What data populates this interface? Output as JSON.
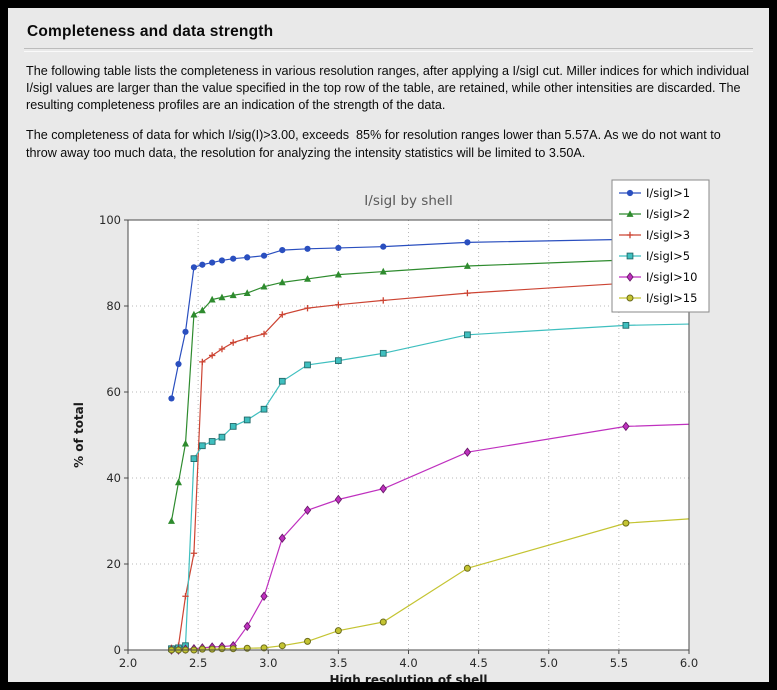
{
  "page": {
    "title": "Completeness and data strength",
    "paragraph1": "The following table lists the completeness in various resolution ranges, after applying a I/sigI cut. Miller indices for which individual I/sigI values are larger than the value specified in the top row of the table, are retained, while other intensities are discarded. The resulting completeness profiles are an indication of the strength of the data.",
    "paragraph2": "The completeness of data for which I/sig(I)>3.00, exceeds  85% for resolution ranges lower than 5.57A. As we do not want to throw away too much data, the resolution for analyzing the intensity statistics will be limited to 3.50A."
  },
  "colors": {
    "outer_bg": "#000000",
    "panel_bg": "#e9e9e9",
    "plot_bg": "#ffffff"
  },
  "chart_data": {
    "type": "line",
    "title": "I/sigI by shell",
    "xlabel": "High resolution of shell",
    "ylabel": "% of total",
    "xlim": [
      2.0,
      6.0
    ],
    "ylim": [
      0,
      100
    ],
    "grid": "dotted",
    "legend_position": "top-right",
    "x_ticks": [
      2.0,
      2.5,
      3.0,
      3.5,
      4.0,
      4.5,
      5.0,
      5.5,
      6.0
    ],
    "x_tick_labels": [
      "2.0",
      "2.5",
      "3.0",
      "3.5",
      "4.0",
      "4.5",
      "5.0",
      "5.5",
      "6.0"
    ],
    "y_ticks": [
      0,
      20,
      40,
      60,
      80,
      100
    ],
    "y_tick_labels": [
      "0",
      "20",
      "40",
      "60",
      "80",
      "100"
    ],
    "x": [
      2.31,
      2.36,
      2.41,
      2.47,
      2.53,
      2.6,
      2.67,
      2.75,
      2.85,
      2.97,
      3.1,
      3.28,
      3.5,
      3.82,
      4.42,
      5.55
    ],
    "series": [
      {
        "name": "I/sigI>1",
        "color": "#2a4fbf",
        "marker": "circle",
        "values": [
          58.5,
          66.5,
          74.0,
          89.0,
          89.6,
          90.1,
          90.6,
          91.0,
          91.3,
          91.7,
          93.0,
          93.3,
          93.5,
          93.8,
          94.8,
          95.5
        ],
        "end_value": 95.8
      },
      {
        "name": "I/sigI>2",
        "color": "#2e8b2e",
        "marker": "triangle-up",
        "values": [
          30.0,
          39.0,
          48.0,
          78.0,
          79.0,
          81.5,
          82.0,
          82.5,
          83.0,
          84.5,
          85.5,
          86.3,
          87.3,
          88.0,
          89.3,
          90.7
        ],
        "end_value": 91.0
      },
      {
        "name": "I/sigI>3",
        "color": "#cc4433",
        "marker": "plus",
        "values": [
          0.5,
          1.0,
          12.5,
          22.5,
          67.0,
          68.5,
          70.0,
          71.5,
          72.5,
          73.5,
          78.0,
          79.5,
          80.3,
          81.3,
          83.0,
          85.3
        ],
        "end_value": 85.6
      },
      {
        "name": "I/sigI>5",
        "color": "#3fbfbf",
        "marker": "square",
        "values": [
          0.3,
          0.5,
          1.0,
          44.5,
          47.5,
          48.5,
          49.5,
          52.0,
          53.5,
          56.0,
          62.5,
          66.3,
          67.3,
          69.0,
          73.3,
          75.5
        ],
        "end_value": 75.8
      },
      {
        "name": "I/sigI>10",
        "color": "#bf30bf",
        "marker": "diamond",
        "values": [
          0.0,
          0.0,
          0.2,
          0.3,
          0.5,
          0.7,
          0.8,
          1.0,
          5.5,
          12.5,
          26.0,
          32.5,
          35.0,
          37.5,
          46.0,
          52.0
        ],
        "end_value": 52.5
      },
      {
        "name": "I/sigI>15",
        "color": "#c4c432",
        "marker": "circle-open",
        "values": [
          0.0,
          0.0,
          0.0,
          0.0,
          0.2,
          0.2,
          0.3,
          0.3,
          0.4,
          0.5,
          1.0,
          2.0,
          4.5,
          6.5,
          19.0,
          29.5
        ],
        "end_value": 30.5
      }
    ]
  }
}
